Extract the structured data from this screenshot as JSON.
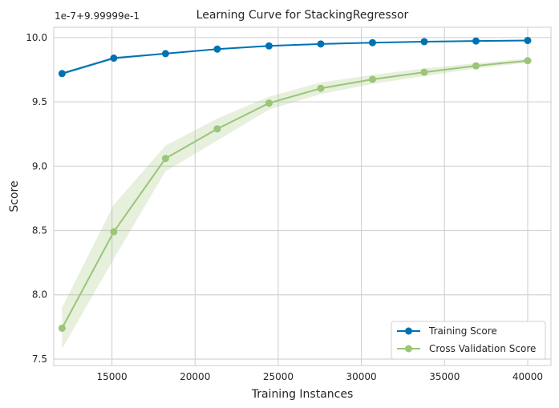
{
  "chart_data": {
    "type": "line",
    "title": "Learning Curve for StackingRegressor",
    "xlabel": "Training Instances",
    "ylabel": "Score",
    "y_offset_label": "1e-7+9.99999e-1",
    "xlim": [
      11500,
      41400
    ],
    "ylim": [
      7.45,
      10.08
    ],
    "x_ticks": [
      15000,
      20000,
      25000,
      30000,
      35000,
      40000
    ],
    "y_ticks": [
      7.5,
      8.0,
      8.5,
      9.0,
      9.5,
      10.0
    ],
    "y_tick_labels": [
      "7.5",
      "8.0",
      "8.5",
      "9.0",
      "9.5",
      "10.0"
    ],
    "grid": true,
    "legend_position": "lower-right",
    "x": [
      12000,
      15111,
      18222,
      21333,
      24444,
      27556,
      30667,
      33778,
      36889,
      40000
    ],
    "series": [
      {
        "name": "Training Score",
        "color": "#0072b2",
        "values": [
          9.72,
          9.84,
          9.875,
          9.91,
          9.935,
          9.95,
          9.96,
          9.968,
          9.973,
          9.977
        ],
        "band_lower": [
          9.71,
          9.83,
          9.87,
          9.905,
          9.93,
          9.945,
          9.955,
          9.964,
          9.97,
          9.974
        ],
        "band_upper": [
          9.73,
          9.85,
          9.88,
          9.915,
          9.94,
          9.955,
          9.965,
          9.972,
          9.976,
          9.98
        ]
      },
      {
        "name": "Cross Validation Score",
        "color": "#9bc577",
        "values": [
          7.74,
          8.49,
          9.06,
          9.29,
          9.49,
          9.605,
          9.675,
          9.73,
          9.78,
          9.82
        ],
        "band_lower": [
          7.58,
          8.28,
          8.96,
          9.2,
          9.44,
          9.56,
          9.64,
          9.7,
          9.76,
          9.805
        ],
        "band_upper": [
          7.9,
          8.7,
          9.16,
          9.37,
          9.54,
          9.65,
          9.71,
          9.76,
          9.8,
          9.835
        ]
      }
    ]
  }
}
